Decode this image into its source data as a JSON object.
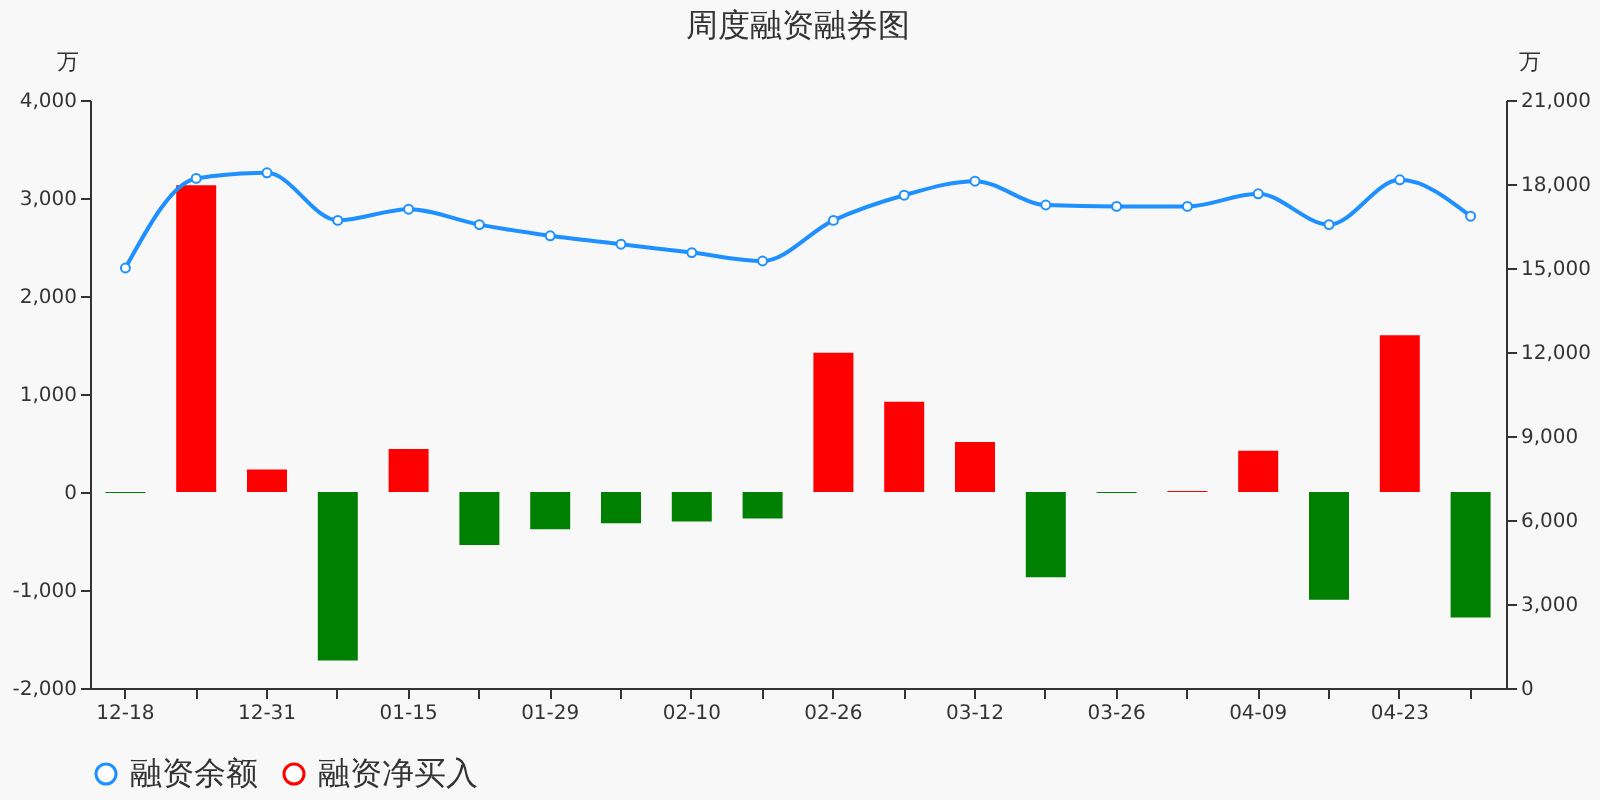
{
  "chart_data": {
    "type": "bar",
    "title": "周度融资融券图",
    "ylabel": "万",
    "y2label": "万",
    "categories": [
      "12-18",
      null,
      "12-31",
      null,
      "01-15",
      null,
      "01-29",
      null,
      "02-10",
      null,
      "02-26",
      null,
      "03-12",
      null,
      "03-26",
      null,
      "04-09",
      null,
      "04-23",
      null
    ],
    "series": [
      {
        "name": "融资余额",
        "type": "line",
        "axis": "y2",
        "color": "#1e90ff",
        "marker": "circle",
        "values": [
          15000,
          18200,
          18400,
          16700,
          17100,
          16550,
          16150,
          15850,
          15550,
          15250,
          16700,
          17600,
          18100,
          17250,
          17200,
          17200,
          17650,
          16550,
          18150,
          16850
        ]
      },
      {
        "name": "融资净买入",
        "color": "#ff0000",
        "colors": [
          "#008000",
          "#ff0000",
          "#ff0000",
          "#008000",
          "#ff0000",
          "#008000",
          "#008000",
          "#008000",
          "#008000",
          "#008000",
          "#ff0000",
          "#ff0000",
          "#ff0000",
          "#008000",
          "#008000",
          "#ff0000",
          "#ff0000",
          "#008000",
          "#ff0000",
          "#008000"
        ],
        "values": [
          -10,
          3130,
          230,
          -1720,
          440,
          -540,
          -380,
          -320,
          -300,
          -270,
          1420,
          920,
          510,
          -870,
          -10,
          10,
          420,
          -1100,
          1600,
          -1280
        ]
      }
    ],
    "ylim": [
      -2000,
      4000
    ],
    "yticks": [
      {
        "value": -2000,
        "label": "-2,000"
      },
      {
        "value": -1000,
        "label": "-1,000"
      },
      0,
      {
        "value": 1000,
        "label": "1,000"
      },
      {
        "value": 2000,
        "label": "2,000"
      },
      {
        "value": 3000,
        "label": "3,000"
      },
      {
        "value": 4000,
        "label": "4,000"
      }
    ],
    "y2lim": [
      0,
      21000
    ],
    "y2ticks": [
      0,
      {
        "value": 3000,
        "label": "3,000"
      },
      {
        "value": 6000,
        "label": "6,000"
      },
      {
        "value": 9000,
        "label": "9,000"
      },
      {
        "value": 12000,
        "label": "12,000"
      },
      {
        "value": 15000,
        "label": "15,000"
      },
      {
        "value": 18000,
        "label": "18,000"
      },
      {
        "value": 21000,
        "label": "21,000"
      }
    ],
    "grid": false,
    "legend": "bottom"
  }
}
